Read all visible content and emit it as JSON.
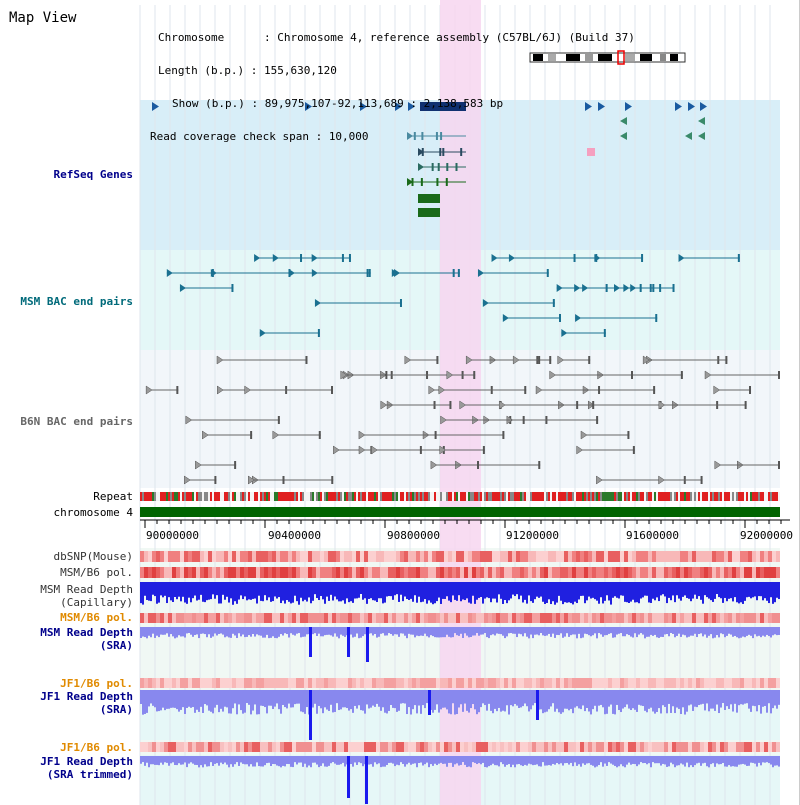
{
  "title": "Map View",
  "info": {
    "chromosome_label": "Chromosome      :",
    "chromosome_value": "Chromosome 4, reference assembly (C57BL/6J) (Build 37)",
    "length_label": "Length (b.p.) :",
    "length_value": "155,630,120",
    "show_label": "Show (b.p.) :",
    "show_value": "89,975,107-92,113,689 : 2,138,583 bp",
    "coverage_label": "Read coverage check span :",
    "coverage_value": "10,000"
  },
  "tracks": {
    "refseq": "RefSeq Genes",
    "msm_bac": "MSM BAC end pairs",
    "b6n_bac": "B6N BAC end pairs",
    "repeat": "Repeat",
    "chromosome": "chromosome 4",
    "dbsnp": "dbSNP(Mouse)",
    "msm_b6_pol": "MSM/B6 pol.",
    "msm_depth_cap_1": "MSM Read Depth",
    "msm_depth_cap_2": "(Capillary)",
    "msm_b6_pol2": "MSM/B6 pol.",
    "msm_depth_sra_1": "MSM Read Depth",
    "msm_depth_sra_2": "(SRA)",
    "jf1_b6_pol": "JF1/B6 pol.",
    "jf1_depth_sra_1": "JF1 Read Depth",
    "jf1_depth_sra_2": "(SRA)",
    "jf1_b6_pol2": "JF1/B6 pol.",
    "jf1_depth_trim_1": "JF1 Read Depth",
    "jf1_depth_trim_2": "(SRA trimmed)"
  },
  "axis_ticks": [
    "90000000",
    "90400000",
    "90800000",
    "91200000",
    "91600000",
    "92000000"
  ],
  "colors": {
    "refseq_bg": "#d8eef8",
    "msm_bg": "#e4f7f7",
    "highlight": "#f7d6f0",
    "chromosome": "#006400",
    "depth_blue": "#1a1aee",
    "depth_light": "#8888ee",
    "pol_red": "#f08080"
  }
}
